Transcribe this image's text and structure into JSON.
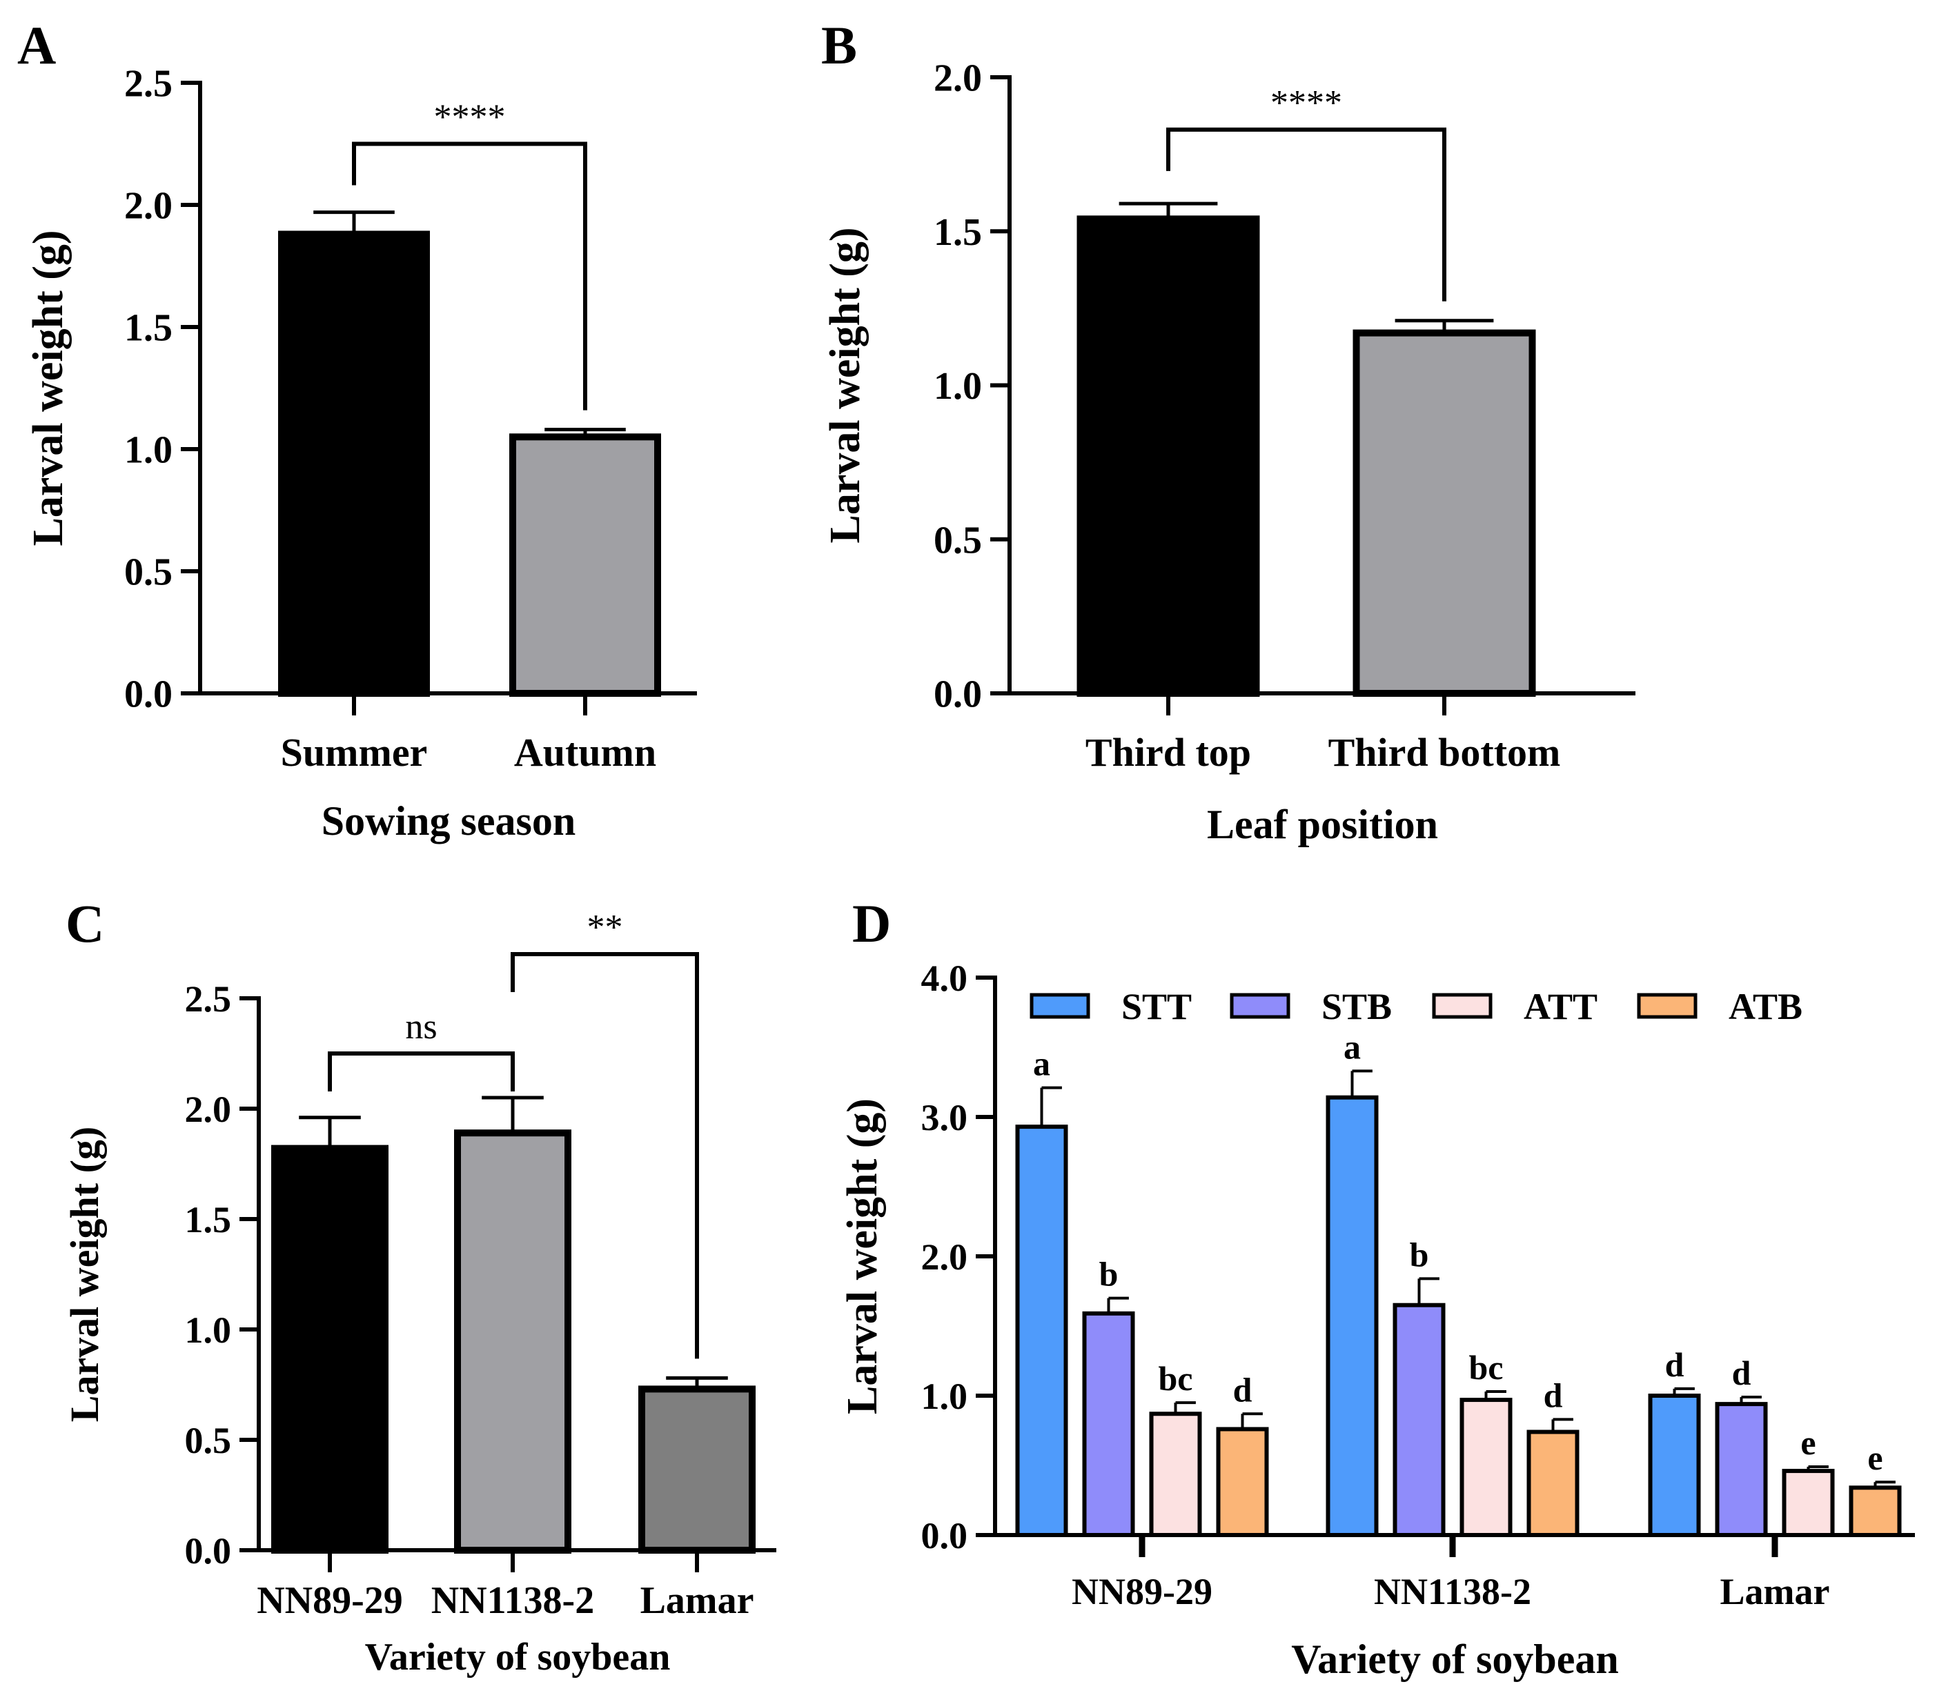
{
  "colors": {
    "black": "#000000",
    "gray_light": "#a0a0a4",
    "gray_dark": "#7f7f7f",
    "STT": "#4f9bfb",
    "STB": "#8f8cfa",
    "ATT": "#fce1e1",
    "ATB": "#fbb577"
  },
  "chart_data": [
    {
      "panel": "A",
      "type": "bar",
      "categories": [
        "Summer",
        "Autumn"
      ],
      "values": [
        1.88,
        1.05
      ],
      "errors": [
        0.09,
        0.03
      ],
      "bar_colors": [
        "#000000",
        "#a0a0a4"
      ],
      "xlabel": "Sowing season",
      "ylabel": "Larval weight (g)",
      "ylim": [
        0,
        2.5
      ],
      "yticks": [
        "0.0",
        "0.5",
        "1.0",
        "1.5",
        "2.0",
        "2.5"
      ],
      "significance": [
        {
          "from": 0,
          "to": 1,
          "label": "****",
          "level": 2.25
        }
      ]
    },
    {
      "panel": "B",
      "type": "bar",
      "categories": [
        "Third top",
        "Third bottom"
      ],
      "values": [
        1.54,
        1.17
      ],
      "errors": [
        0.05,
        0.04
      ],
      "bar_colors": [
        "#000000",
        "#a0a0a4"
      ],
      "xlabel": "Leaf position",
      "ylabel": "Larval weight (g)",
      "ylim": [
        0,
        2.0
      ],
      "yticks": [
        "0.0",
        "0.5",
        "1.0",
        "1.5",
        "2.0"
      ],
      "significance": [
        {
          "from": 0,
          "to": 1,
          "label": "****",
          "level": 1.83
        }
      ]
    },
    {
      "panel": "C",
      "type": "bar",
      "categories": [
        "NN89-29",
        "NN1138-2",
        "Lamar"
      ],
      "values": [
        1.82,
        1.89,
        0.73
      ],
      "errors": [
        0.14,
        0.16,
        0.05
      ],
      "bar_colors": [
        "#000000",
        "#a0a0a4",
        "#7f7f7f"
      ],
      "xlabel": "Variety of soybean",
      "ylabel": "Larval weight (g)",
      "ylim": [
        0,
        2.5
      ],
      "yticks": [
        "0.0",
        "0.5",
        "1.0",
        "1.5",
        "2.0",
        "2.5"
      ],
      "significance": [
        {
          "from": 0,
          "to": 1,
          "label": "ns",
          "level": 2.25
        },
        {
          "from": 1,
          "to": 2,
          "label": "**",
          "level": 2.7
        }
      ]
    },
    {
      "panel": "D",
      "type": "bar",
      "categories": [
        "NN89-29",
        "NN1138-2",
        "Lamar"
      ],
      "series": [
        {
          "name": "STT",
          "values": [
            2.93,
            3.14,
            1.0
          ],
          "errors": [
            0.28,
            0.19,
            0.05
          ],
          "letters": [
            "a",
            "a",
            "d"
          ]
        },
        {
          "name": "STB",
          "values": [
            1.59,
            1.65,
            0.94
          ],
          "errors": [
            0.11,
            0.19,
            0.05
          ],
          "letters": [
            "b",
            "b",
            "d"
          ]
        },
        {
          "name": "ATT",
          "values": [
            0.87,
            0.97,
            0.46
          ],
          "errors": [
            0.08,
            0.06,
            0.03
          ],
          "letters": [
            "bc",
            "bc",
            "e"
          ]
        },
        {
          "name": "ATB",
          "values": [
            0.76,
            0.74,
            0.34
          ],
          "errors": [
            0.11,
            0.09,
            0.04
          ],
          "letters": [
            "d",
            "d",
            "e"
          ]
        }
      ],
      "xlabel": "Variety of soybean",
      "ylabel": "Larval weight (g)",
      "ylim": [
        0,
        4.0
      ],
      "yticks": [
        "0.0",
        "1.0",
        "2.0",
        "3.0",
        "4.0"
      ],
      "legend": "top"
    }
  ]
}
